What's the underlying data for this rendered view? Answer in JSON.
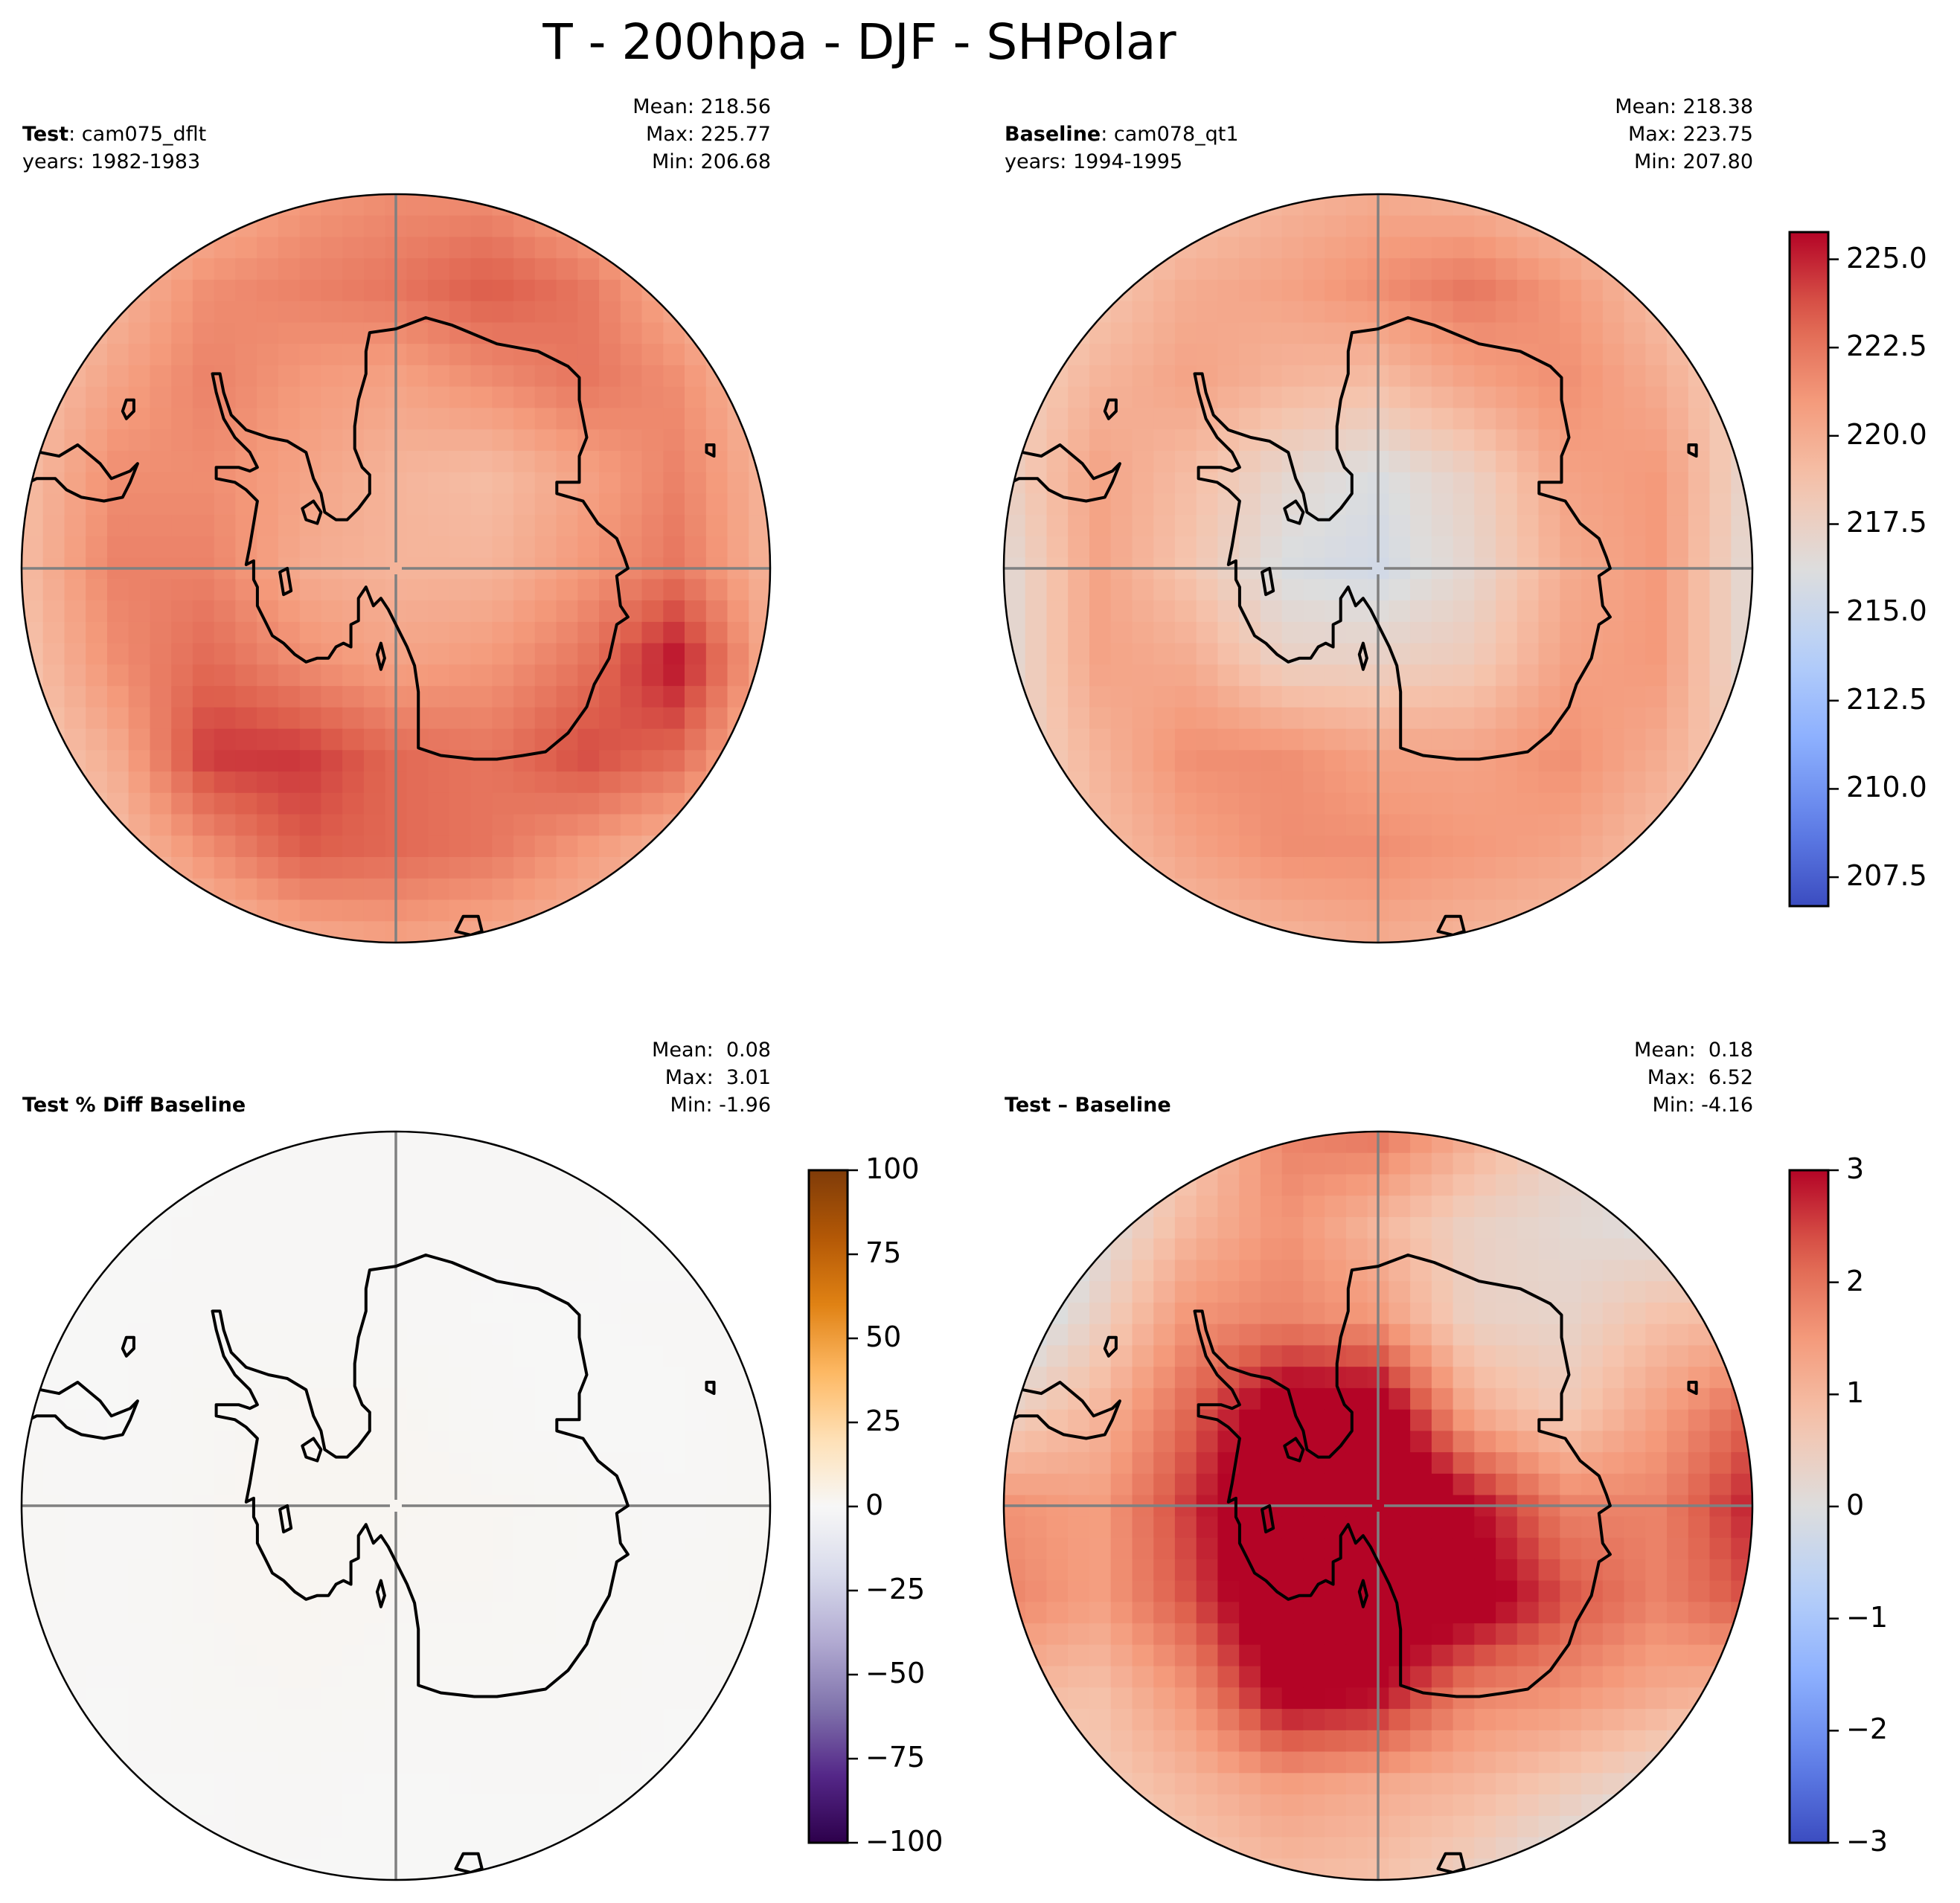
{
  "figure": {
    "suptitle": "T - 200hpa - DJF - SHPolar"
  },
  "chart_data": [
    {
      "type": "heatmap",
      "panel": "test",
      "projection": "south-polar-stereographic",
      "title_bold": "Test",
      "title_rest": ": cam075_dflt",
      "subtitle": "years: 1982-1983",
      "stats": {
        "mean_label": "Mean: 218.56",
        "max_label": "Max: 225.77",
        "min_label": "Min: 206.68"
      },
      "colormap": "coolwarm",
      "vmin": 206.68,
      "vmax": 225.77,
      "colorbar": true,
      "grid_note": "coarse 9x9 field samples, rows north(top)->south(bottom), cols left->right, data units K",
      "field": [
        [
          217.0,
          218.0,
          219.5,
          221.0,
          221.5,
          221.5,
          220.0,
          218.5,
          217.0
        ],
        [
          217.5,
          219.5,
          221.5,
          222.0,
          222.5,
          223.5,
          222.5,
          220.0,
          217.5
        ],
        [
          218.5,
          220.5,
          222.0,
          221.0,
          220.5,
          221.5,
          222.5,
          221.5,
          219.0
        ],
        [
          219.0,
          221.5,
          221.5,
          220.5,
          219.5,
          219.0,
          220.5,
          222.0,
          219.5
        ],
        [
          219.0,
          222.0,
          222.0,
          220.0,
          219.5,
          219.5,
          221.0,
          222.5,
          219.5
        ],
        [
          218.5,
          221.5,
          223.0,
          221.5,
          220.5,
          221.0,
          222.5,
          225.5,
          220.0
        ],
        [
          218.0,
          220.0,
          224.5,
          224.5,
          223.0,
          222.5,
          224.0,
          223.0,
          219.0
        ],
        [
          217.5,
          219.0,
          221.5,
          223.5,
          223.0,
          222.5,
          221.0,
          219.5,
          218.0
        ],
        [
          217.0,
          218.0,
          219.0,
          220.0,
          220.5,
          220.0,
          219.5,
          218.5,
          217.5
        ]
      ],
      "colorbar_ticks": [
        "207.5",
        "210.0",
        "212.5",
        "215.0",
        "217.5",
        "220.0",
        "222.5",
        "225.0"
      ],
      "colorbar_tick_values": [
        207.5,
        210.0,
        212.5,
        215.0,
        217.5,
        220.0,
        222.5,
        225.0
      ]
    },
    {
      "type": "heatmap",
      "panel": "baseline",
      "projection": "south-polar-stereographic",
      "title_bold": "Baseline",
      "title_rest": ": cam078_qt1",
      "subtitle": "years: 1994-1995",
      "stats": {
        "mean_label": "Mean: 218.38",
        "max_label": "Max: 223.75",
        "min_label": "Min: 207.80"
      },
      "colormap": "coolwarm",
      "vmin": 206.68,
      "vmax": 225.77,
      "colorbar": false,
      "field": [
        [
          216.5,
          217.5,
          218.5,
          219.5,
          220.0,
          219.5,
          218.5,
          217.5,
          216.5
        ],
        [
          217.0,
          218.5,
          220.0,
          220.5,
          221.5,
          222.5,
          221.0,
          219.0,
          217.0
        ],
        [
          217.5,
          219.5,
          220.5,
          219.5,
          219.0,
          220.5,
          221.5,
          220.0,
          217.5
        ],
        [
          217.5,
          220.5,
          219.0,
          217.0,
          216.0,
          217.5,
          220.5,
          221.0,
          217.0
        ],
        [
          216.5,
          220.5,
          218.5,
          216.0,
          215.5,
          217.0,
          220.0,
          221.0,
          216.5
        ],
        [
          216.5,
          220.5,
          220.0,
          217.5,
          217.5,
          218.0,
          220.5,
          221.0,
          216.5
        ],
        [
          217.0,
          219.5,
          221.5,
          221.5,
          220.5,
          220.5,
          221.5,
          220.0,
          217.5
        ],
        [
          217.5,
          219.0,
          220.5,
          221.5,
          221.5,
          221.0,
          220.5,
          219.0,
          218.0
        ],
        [
          217.0,
          218.0,
          219.0,
          219.5,
          220.0,
          219.5,
          219.0,
          218.0,
          217.5
        ]
      ]
    },
    {
      "type": "heatmap",
      "panel": "pct_diff",
      "projection": "south-polar-stereographic",
      "title_bold": "Test % Diff Baseline",
      "title_rest": "",
      "subtitle": "",
      "stats": {
        "mean_label": "Mean:  0.08",
        "max_label": "Max:  3.01",
        "min_label": "Min: -1.96"
      },
      "colormap": "PuOr_r",
      "vmin": -100,
      "vmax": 100,
      "colorbar": true,
      "field": [
        [
          0.1,
          0.0,
          0.2,
          0.6,
          0.6,
          0.8,
          0.6,
          0.4,
          0.2
        ],
        [
          0.0,
          0.2,
          0.6,
          0.7,
          0.5,
          0.5,
          0.6,
          0.1,
          0.0
        ],
        [
          -0.1,
          0.3,
          0.7,
          0.7,
          0.7,
          0.4,
          0.4,
          0.6,
          0.6
        ],
        [
          0.6,
          0.4,
          1.2,
          1.6,
          1.6,
          0.7,
          0.1,
          0.3,
          1.0
        ],
        [
          1.0,
          0.5,
          1.4,
          1.8,
          1.8,
          1.5,
          1.0,
          0.5,
          1.2
        ],
        [
          0.9,
          0.6,
          1.4,
          1.8,
          1.4,
          1.4,
          1.0,
          0.9,
          1.4
        ],
        [
          0.5,
          0.4,
          1.2,
          1.4,
          1.1,
          0.9,
          1.0,
          0.5,
          0.8
        ],
        [
          0.2,
          0.4,
          0.4,
          0.6,
          0.3,
          0.5,
          0.5,
          0.2,
          -0.5
        ],
        [
          0.1,
          0.2,
          0.5,
          0.4,
          0.3,
          0.1,
          -0.1,
          -0.6,
          -0.5
        ]
      ],
      "colorbar_ticks": [
        "−100",
        "−75",
        "−50",
        "−25",
        "0",
        "25",
        "50",
        "75",
        "100"
      ],
      "colorbar_tick_values": [
        -100,
        -75,
        -50,
        -25,
        0,
        25,
        50,
        75,
        100
      ]
    },
    {
      "type": "heatmap",
      "panel": "abs_diff",
      "projection": "south-polar-stereographic",
      "title_bold": "Test – Baseline",
      "title_rest": "",
      "subtitle": "",
      "stats": {
        "mean_label": "Mean:  0.18",
        "max_label": "Max:  6.52",
        "min_label": "Min: -4.16"
      },
      "colormap": "coolwarm",
      "vmin": -3,
      "vmax": 3,
      "colorbar": true,
      "field": [
        [
          -0.3,
          -0.1,
          0.6,
          1.8,
          2.0,
          1.2,
          0.4,
          -0.1,
          -0.3
        ],
        [
          -1.0,
          0.0,
          1.0,
          1.6,
          1.0,
          0.4,
          0.2,
          0.0,
          -0.2
        ],
        [
          -0.5,
          0.4,
          1.6,
          1.8,
          1.5,
          0.4,
          0.3,
          0.8,
          1.0
        ],
        [
          0.4,
          1.0,
          2.2,
          3.5,
          3.5,
          1.2,
          0.6,
          1.4,
          2.2
        ],
        [
          1.6,
          1.4,
          2.6,
          4.0,
          4.0,
          3.0,
          1.8,
          1.8,
          2.8
        ],
        [
          1.8,
          1.4,
          2.4,
          3.8,
          3.6,
          3.4,
          2.4,
          1.8,
          2.4
        ],
        [
          1.0,
          0.8,
          1.6,
          3.2,
          3.0,
          1.8,
          1.6,
          1.2,
          1.0
        ],
        [
          0.3,
          0.6,
          1.0,
          1.4,
          1.2,
          1.0,
          0.6,
          0.2,
          -0.5
        ],
        [
          0.2,
          0.3,
          0.6,
          0.9,
          0.8,
          0.4,
          -0.2,
          -1.0,
          -0.8
        ]
      ],
      "colorbar_ticks": [
        "−3",
        "−2",
        "−1",
        "0",
        "1",
        "2",
        "3"
      ],
      "colorbar_tick_values": [
        -3,
        -2,
        -1,
        0,
        1,
        2,
        3
      ]
    }
  ]
}
